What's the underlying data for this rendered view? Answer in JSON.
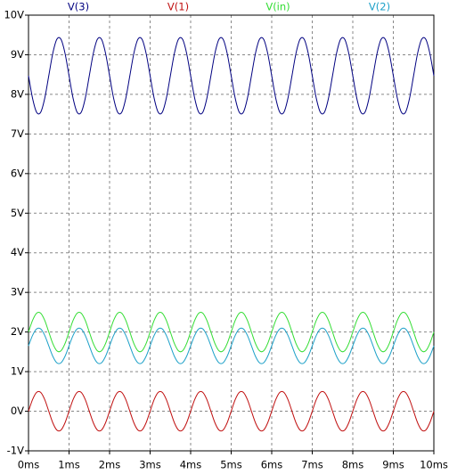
{
  "chart_data": {
    "type": "line",
    "x": [
      0,
      0.1,
      0.2,
      0.3,
      0.4,
      0.5,
      0.6,
      0.7,
      0.8,
      0.9,
      1,
      1.1,
      1.2,
      1.3,
      1.4,
      1.5,
      1.6,
      1.7,
      1.8,
      1.9,
      2,
      2.1,
      2.2,
      2.3,
      2.4,
      2.5,
      2.6,
      2.7,
      2.8,
      2.9,
      3,
      3.1,
      3.2,
      3.3,
      3.4,
      3.5,
      3.6,
      3.7,
      3.8,
      3.9,
      4,
      4.1,
      4.2,
      4.3,
      4.4,
      4.5,
      4.6,
      4.7,
      4.8,
      4.9,
      5,
      5.1,
      5.2,
      5.3,
      5.4,
      5.5,
      5.6,
      5.7,
      5.8,
      5.9,
      6,
      6.1,
      6.2,
      6.3,
      6.4,
      6.5,
      6.6,
      6.7,
      6.8,
      6.9,
      7,
      7.1,
      7.2,
      7.3,
      7.4,
      7.5,
      7.6,
      7.7,
      7.8,
      7.9,
      8,
      8.1,
      8.2,
      8.3,
      8.4,
      8.5,
      8.6,
      8.7,
      8.8,
      8.9,
      9,
      9.1,
      9.2,
      9.3,
      9.4,
      9.5,
      9.6,
      9.7,
      9.8,
      9.9,
      10
    ],
    "series": [
      {
        "name": "V(3)",
        "color": "#000080",
        "values": [
          8.47,
          7.9,
          7.548,
          7.548,
          7.9,
          8.47,
          9.04,
          9.392,
          9.392,
          9.04,
          8.47,
          7.9,
          7.548,
          7.548,
          7.9,
          8.47,
          9.04,
          9.392,
          9.392,
          9.04,
          8.47,
          7.9,
          7.548,
          7.548,
          7.9,
          8.47,
          9.04,
          9.392,
          9.392,
          9.04,
          8.47,
          7.9,
          7.548,
          7.548,
          7.9,
          8.47,
          9.04,
          9.392,
          9.392,
          9.04,
          8.47,
          7.9,
          7.548,
          7.548,
          7.9,
          8.47,
          9.04,
          9.392,
          9.392,
          9.04,
          8.47,
          7.9,
          7.548,
          7.548,
          7.9,
          8.47,
          9.04,
          9.392,
          9.392,
          9.04,
          8.47,
          7.9,
          7.548,
          7.548,
          7.9,
          8.47,
          9.04,
          9.392,
          9.392,
          9.04,
          8.47,
          7.9,
          7.548,
          7.548,
          7.9,
          8.47,
          9.04,
          9.392,
          9.392,
          9.04,
          8.47,
          7.9,
          7.548,
          7.548,
          7.9,
          8.47,
          9.04,
          9.392,
          9.392,
          9.04,
          8.47,
          7.9,
          7.548,
          7.548,
          7.9,
          8.47,
          9.04,
          9.392,
          9.392,
          9.04,
          8.47
        ]
      },
      {
        "name": "V(1)",
        "color": "#c01010",
        "values": [
          0,
          0.294,
          0.476,
          0.476,
          0.294,
          0,
          -0.294,
          -0.476,
          -0.476,
          -0.294,
          0,
          0.294,
          0.476,
          0.476,
          0.294,
          0,
          -0.294,
          -0.476,
          -0.476,
          -0.294,
          0,
          0.294,
          0.476,
          0.476,
          0.294,
          0,
          -0.294,
          -0.476,
          -0.476,
          -0.294,
          0,
          0.294,
          0.476,
          0.476,
          0.294,
          0,
          -0.294,
          -0.476,
          -0.476,
          -0.294,
          0,
          0.294,
          0.476,
          0.476,
          0.294,
          0,
          -0.294,
          -0.476,
          -0.476,
          -0.294,
          0,
          0.294,
          0.476,
          0.476,
          0.294,
          0,
          -0.294,
          -0.476,
          -0.476,
          -0.294,
          0,
          0.294,
          0.476,
          0.476,
          0.294,
          0,
          -0.294,
          -0.476,
          -0.476,
          -0.294,
          0,
          0.294,
          0.476,
          0.476,
          0.294,
          0,
          -0.294,
          -0.476,
          -0.476,
          -0.294,
          0,
          0.294,
          0.476,
          0.476,
          0.294,
          0,
          -0.294,
          -0.476,
          -0.476,
          -0.294,
          0,
          0.294,
          0.476,
          0.476,
          0.294,
          0,
          -0.294,
          -0.476,
          -0.476,
          -0.294,
          0
        ]
      },
      {
        "name": "V(in)",
        "color": "#33dd33",
        "values": [
          2,
          2.294,
          2.476,
          2.476,
          2.294,
          2,
          1.706,
          1.524,
          1.524,
          1.706,
          2,
          2.294,
          2.476,
          2.476,
          2.294,
          2,
          1.706,
          1.524,
          1.524,
          1.706,
          2,
          2.294,
          2.476,
          2.476,
          2.294,
          2,
          1.706,
          1.524,
          1.524,
          1.706,
          2,
          2.294,
          2.476,
          2.476,
          2.294,
          2,
          1.706,
          1.524,
          1.524,
          1.706,
          2,
          2.294,
          2.476,
          2.476,
          2.294,
          2,
          1.706,
          1.524,
          1.524,
          1.706,
          2,
          2.294,
          2.476,
          2.476,
          2.294,
          2,
          1.706,
          1.524,
          1.524,
          1.706,
          2,
          2.294,
          2.476,
          2.476,
          2.294,
          2,
          1.706,
          1.524,
          1.524,
          1.706,
          2,
          2.294,
          2.476,
          2.476,
          2.294,
          2,
          1.706,
          1.524,
          1.524,
          1.706,
          2,
          2.294,
          2.476,
          2.476,
          2.294,
          2,
          1.706,
          1.524,
          1.524,
          1.706,
          2,
          2.294,
          2.476,
          2.476,
          2.294,
          2,
          1.706,
          1.524,
          1.524,
          1.706,
          2
        ]
      },
      {
        "name": "V(2)",
        "color": "#1ca0c8",
        "values": [
          1.65,
          1.915,
          2.078,
          2.078,
          1.915,
          1.65,
          1.385,
          1.222,
          1.222,
          1.385,
          1.65,
          1.915,
          2.078,
          2.078,
          1.915,
          1.65,
          1.385,
          1.222,
          1.222,
          1.385,
          1.65,
          1.915,
          2.078,
          2.078,
          1.915,
          1.65,
          1.385,
          1.222,
          1.222,
          1.385,
          1.65,
          1.915,
          2.078,
          2.078,
          1.915,
          1.65,
          1.385,
          1.222,
          1.222,
          1.385,
          1.65,
          1.915,
          2.078,
          2.078,
          1.915,
          1.65,
          1.385,
          1.222,
          1.222,
          1.385,
          1.65,
          1.915,
          2.078,
          2.078,
          1.915,
          1.65,
          1.385,
          1.222,
          1.222,
          1.385,
          1.65,
          1.915,
          2.078,
          2.078,
          1.915,
          1.65,
          1.385,
          1.222,
          1.222,
          1.385,
          1.65,
          1.915,
          2.078,
          2.078,
          1.915,
          1.65,
          1.385,
          1.222,
          1.222,
          1.385,
          1.65,
          1.915,
          2.078,
          2.078,
          1.915,
          1.65,
          1.385,
          1.222,
          1.222,
          1.385,
          1.65,
          1.915,
          2.078,
          2.078,
          1.915,
          1.65,
          1.385,
          1.222,
          1.222,
          1.385,
          1.65
        ]
      }
    ],
    "xlim": [
      0,
      10
    ],
    "ylim": [
      -1,
      10
    ],
    "xticks": [
      {
        "value": 0,
        "label": "0ms"
      },
      {
        "value": 1,
        "label": "1ms"
      },
      {
        "value": 2,
        "label": "2ms"
      },
      {
        "value": 3,
        "label": "3ms"
      },
      {
        "value": 4,
        "label": "4ms"
      },
      {
        "value": 5,
        "label": "5ms"
      },
      {
        "value": 6,
        "label": "6ms"
      },
      {
        "value": 7,
        "label": "7ms"
      },
      {
        "value": 8,
        "label": "8ms"
      },
      {
        "value": 9,
        "label": "9ms"
      },
      {
        "value": 10,
        "label": "10ms"
      }
    ],
    "yticks": [
      {
        "value": -1,
        "label": "-1V"
      },
      {
        "value": 0,
        "label": "0V"
      },
      {
        "value": 1,
        "label": "1V"
      },
      {
        "value": 2,
        "label": "2V"
      },
      {
        "value": 3,
        "label": "3V"
      },
      {
        "value": 4,
        "label": "4V"
      },
      {
        "value": 5,
        "label": "5V"
      },
      {
        "value": 6,
        "label": "6V"
      },
      {
        "value": 7,
        "label": "7V"
      },
      {
        "value": 8,
        "label": "8V"
      },
      {
        "value": 9,
        "label": "9V"
      },
      {
        "value": 10,
        "label": "10V"
      }
    ],
    "grid": true
  }
}
